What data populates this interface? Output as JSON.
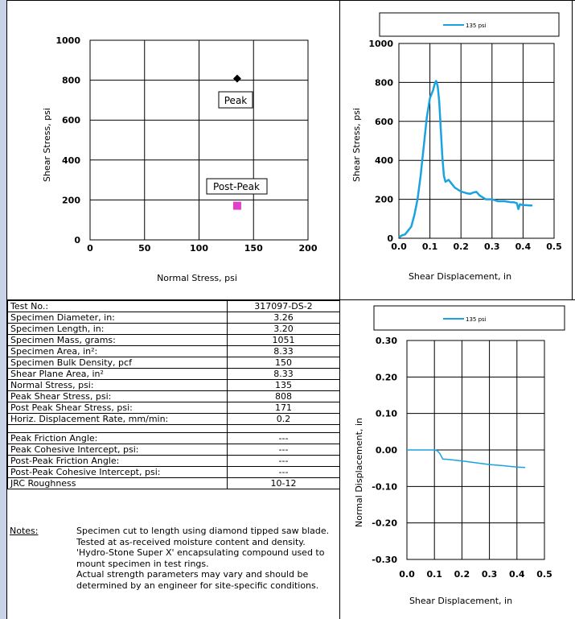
{
  "chart_data": [
    {
      "type": "scatter",
      "xlabel": "Normal Stress, psi",
      "ylabel": "Shear Stress, psi",
      "xlim": [
        0,
        200
      ],
      "ylim": [
        0,
        1000
      ],
      "xticks": [
        "0",
        "50",
        "100",
        "150",
        "200"
      ],
      "yticks": [
        "0",
        "200",
        "400",
        "600",
        "800",
        "1000"
      ],
      "grid": true,
      "points": [
        {
          "name": "Peak",
          "x": 135,
          "y": 808,
          "marker": "diamond",
          "color": "#000000"
        },
        {
          "name": "Post-Peak",
          "x": 135,
          "y": 171,
          "marker": "square",
          "color": "#e040c8"
        }
      ],
      "annotations": [
        "Peak",
        "Post-Peak"
      ]
    },
    {
      "type": "line",
      "xlabel": "Shear Displacement, in",
      "ylabel": "Shear Stress, psi",
      "xlim": [
        0,
        0.5
      ],
      "ylim": [
        0,
        1000
      ],
      "xticks": [
        "0.0",
        "0.1",
        "0.2",
        "0.3",
        "0.4",
        "0.5"
      ],
      "yticks": [
        "0",
        "200",
        "400",
        "600",
        "800",
        "1000"
      ],
      "grid": true,
      "legend": "top",
      "series": [
        {
          "name": "135 psi",
          "color": "#1aa3e0",
          "x": [
            0.0,
            0.01,
            0.02,
            0.03,
            0.04,
            0.05,
            0.06,
            0.07,
            0.08,
            0.09,
            0.1,
            0.11,
            0.115,
            0.12,
            0.125,
            0.13,
            0.135,
            0.14,
            0.145,
            0.15,
            0.16,
            0.17,
            0.18,
            0.19,
            0.2,
            0.21,
            0.22,
            0.23,
            0.24,
            0.25,
            0.26,
            0.27,
            0.28,
            0.3,
            0.32,
            0.34,
            0.36,
            0.37,
            0.38,
            0.385,
            0.39,
            0.4,
            0.41,
            0.42,
            0.43
          ],
          "y": [
            5,
            15,
            20,
            40,
            60,
            120,
            200,
            320,
            470,
            620,
            720,
            760,
            790,
            808,
            780,
            700,
            560,
            420,
            320,
            290,
            300,
            280,
            260,
            250,
            240,
            235,
            230,
            228,
            235,
            238,
            220,
            210,
            200,
            200,
            190,
            190,
            185,
            185,
            180,
            150,
            175,
            170,
            170,
            168,
            168
          ]
        }
      ]
    },
    {
      "type": "line",
      "xlabel": "Shear Displacement, in",
      "ylabel": "Normal Displacement, in",
      "xlim": [
        0,
        0.5
      ],
      "ylim": [
        -0.3,
        0.3
      ],
      "xticks": [
        "0.0",
        "0.1",
        "0.2",
        "0.3",
        "0.4",
        "0.5"
      ],
      "yticks": [
        "-0.30",
        "-0.20",
        "-0.10",
        "0.00",
        "0.10",
        "0.20",
        "0.30"
      ],
      "grid": true,
      "legend": "top",
      "series": [
        {
          "name": "135 psi",
          "color": "#1aa3e0",
          "x": [
            0.0,
            0.05,
            0.1,
            0.11,
            0.12,
            0.13,
            0.15,
            0.2,
            0.25,
            0.3,
            0.35,
            0.4,
            0.43
          ],
          "y": [
            0.0,
            0.0,
            0.0,
            -0.002,
            -0.01,
            -0.025,
            -0.026,
            -0.03,
            -0.035,
            -0.04,
            -0.043,
            -0.047,
            -0.048
          ]
        }
      ]
    }
  ],
  "properties": [
    {
      "label": "Test No.:",
      "value": "317097-DS-2"
    },
    {
      "label": "Specimen Diameter, in:",
      "value": "3.26"
    },
    {
      "label": "Specimen Length, in:",
      "value": "3.20"
    },
    {
      "label": "Specimen Mass, grams:",
      "value": "1051"
    },
    {
      "label": "Specimen Area, in²:",
      "value": "8.33"
    },
    {
      "label": "Specimen Bulk Density, pcf",
      "value": "150"
    },
    {
      "label": "Shear Plane Area, in²",
      "value": "8.33"
    },
    {
      "label": "Normal Stress, psi:",
      "value": "135"
    },
    {
      "label": "Peak Shear Stress, psi:",
      "value": "808"
    },
    {
      "label": "Post Peak Shear Stress, psi:",
      "value": "171"
    },
    {
      "label": "Horiz. Displacement Rate, mm/min:",
      "value": "0.2"
    }
  ],
  "strength": [
    {
      "label": "Peak Friction Angle:",
      "value": "---"
    },
    {
      "label": "Peak Cohesive Intercept, psi:",
      "value": "---"
    },
    {
      "label": "Post-Peak Friction Angle:",
      "value": "---"
    },
    {
      "label": "Post-Peak Cohesive Intercept, psi:",
      "value": "---"
    },
    {
      "label": "JRC Roughness",
      "value": "10-12"
    }
  ],
  "notes": {
    "label": "Notes:",
    "lines": [
      "Specimen cut to length using diamond tipped saw blade.",
      "Tested at as-received moisture content and density.",
      "'Hydro-Stone Super X' encapsulating compound used to mount specimen in test rings.",
      "Actual strength parameters may vary and should be determined by an engineer for site-specific conditions."
    ]
  }
}
